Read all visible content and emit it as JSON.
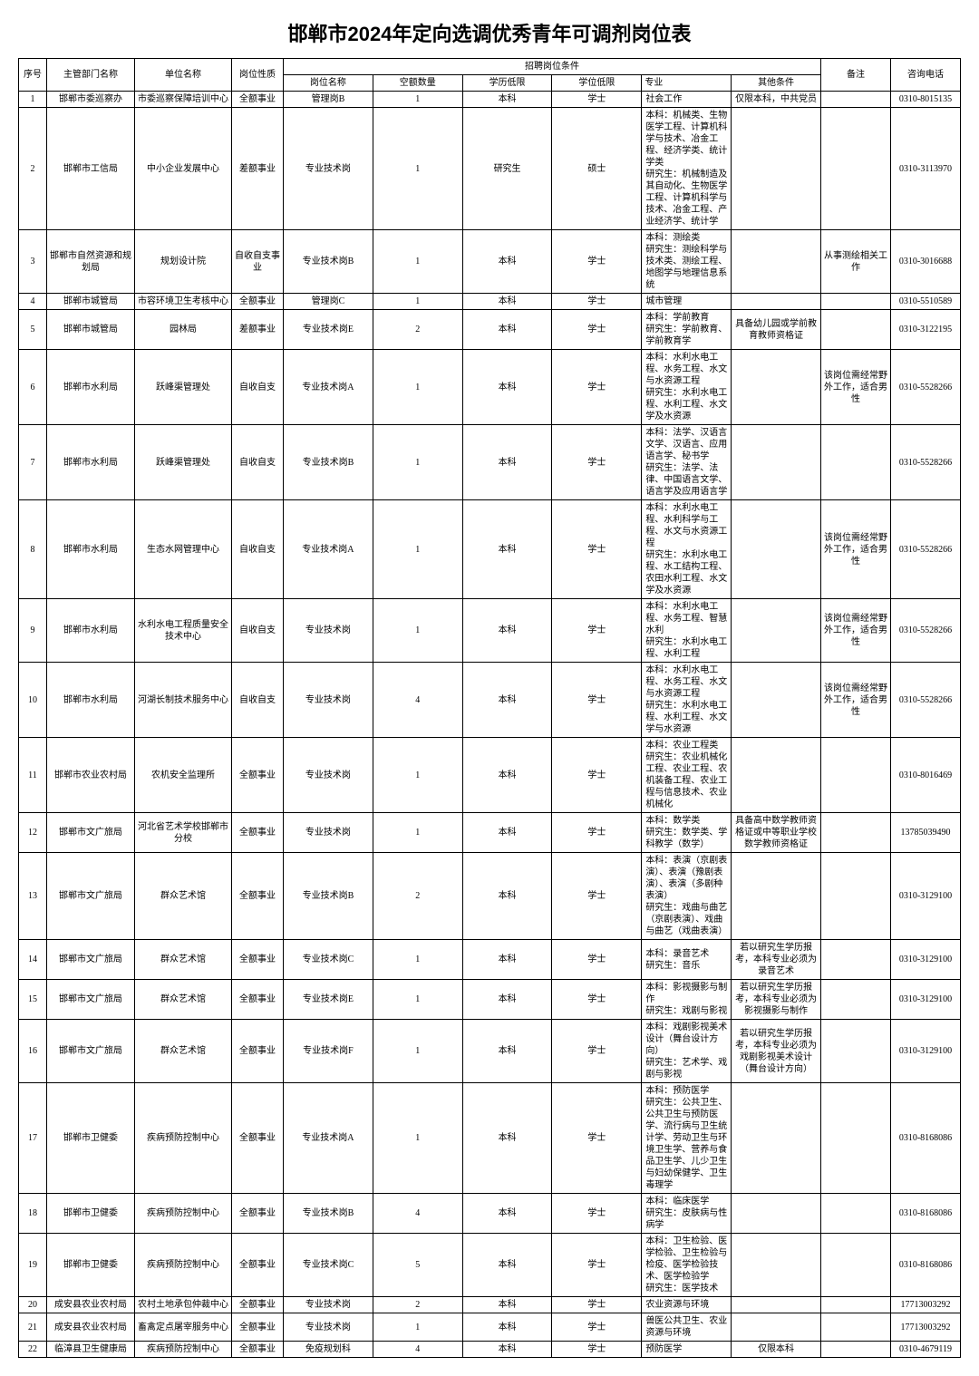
{
  "title": "邯郸市2024年定向选调优秀青年可调剂岗位表",
  "headers": {
    "seq": "序号",
    "dept": "主管部门名称",
    "unit": "单位名称",
    "nature": "岗位性质",
    "group": "招聘岗位条件",
    "post": "岗位名称",
    "qty": "空额数量",
    "edu": "学历低限",
    "deg": "学位低限",
    "major": "专业",
    "other": "其他条件",
    "remark": "备注",
    "phone": "咨询电话"
  },
  "rows": [
    {
      "seq": "1",
      "dept": "邯郸市委巡察办",
      "unit": "市委巡察保障培训中心",
      "nature": "全额事业",
      "post": "管理岗B",
      "qty": "1",
      "edu": "本科",
      "deg": "学士",
      "major": "社会工作",
      "other": "仅限本科，中共党员",
      "remark": "",
      "phone": "0310-8015135"
    },
    {
      "seq": "2",
      "dept": "邯郸市工信局",
      "unit": "中小企业发展中心",
      "nature": "差额事业",
      "post": "专业技术岗",
      "qty": "1",
      "edu": "研究生",
      "deg": "硕士",
      "major": "本科：机械类、生物医学工程、计算机科学与技术、冶金工程、经济学类、统计学类\n研究生：机械制造及其自动化、生物医学工程、计算机科学与技术、冶金工程、产业经济学、统计学",
      "other": "",
      "remark": "",
      "phone": "0310-3113970"
    },
    {
      "seq": "3",
      "dept": "邯郸市自然资源和规划局",
      "unit": "规划设计院",
      "nature": "自收自支事业",
      "post": "专业技术岗B",
      "qty": "1",
      "edu": "本科",
      "deg": "学士",
      "major": "本科：测绘类\n研究生：测绘科学与技术类、测绘工程、地图学与地理信息系统",
      "other": "",
      "remark": "从事测绘相关工作",
      "phone": "0310-3016688"
    },
    {
      "seq": "4",
      "dept": "邯郸市城管局",
      "unit": "市容环境卫生考核中心",
      "nature": "全额事业",
      "post": "管理岗C",
      "qty": "1",
      "edu": "本科",
      "deg": "学士",
      "major": "城市管理",
      "other": "",
      "remark": "",
      "phone": "0310-5510589"
    },
    {
      "seq": "5",
      "dept": "邯郸市城管局",
      "unit": "园林局",
      "nature": "差额事业",
      "post": "专业技术岗E",
      "qty": "2",
      "edu": "本科",
      "deg": "学士",
      "major": "本科：学前教育\n研究生：学前教育、学前教育学",
      "other": "具备幼儿园或学前教育教师资格证",
      "remark": "",
      "phone": "0310-3122195"
    },
    {
      "seq": "6",
      "dept": "邯郸市水利局",
      "unit": "跃峰渠管理处",
      "nature": "自收自支",
      "post": "专业技术岗A",
      "qty": "1",
      "edu": "本科",
      "deg": "学士",
      "major": "本科：水利水电工程、水务工程、水文与水资源工程\n研究生：水利水电工程、水利工程、水文学及水资源",
      "other": "",
      "remark": "该岗位需经常野外工作，适合男性",
      "phone": "0310-5528266"
    },
    {
      "seq": "7",
      "dept": "邯郸市水利局",
      "unit": "跃峰渠管理处",
      "nature": "自收自支",
      "post": "专业技术岗B",
      "qty": "1",
      "edu": "本科",
      "deg": "学士",
      "major": "本科：法学、汉语言文学、汉语言、应用语言学、秘书学\n研究生：法学、法律、中国语言文学、语言学及应用语言学",
      "other": "",
      "remark": "",
      "phone": "0310-5528266"
    },
    {
      "seq": "8",
      "dept": "邯郸市水利局",
      "unit": "生态水网管理中心",
      "nature": "自收自支",
      "post": "专业技术岗A",
      "qty": "1",
      "edu": "本科",
      "deg": "学士",
      "major": "本科：水利水电工程、水利科学与工程、水文与水资源工程\n研究生：水利水电工程、水工结构工程、农田水利工程、水文学及水资源",
      "other": "",
      "remark": "该岗位需经常野外工作，适合男性",
      "phone": "0310-5528266"
    },
    {
      "seq": "9",
      "dept": "邯郸市水利局",
      "unit": "水利水电工程质量安全技术中心",
      "nature": "自收自支",
      "post": "专业技术岗",
      "qty": "1",
      "edu": "本科",
      "deg": "学士",
      "major": "本科：水利水电工程、水务工程、智慧水利\n研究生：水利水电工程、水利工程",
      "other": "",
      "remark": "该岗位需经常野外工作，适合男性",
      "phone": "0310-5528266"
    },
    {
      "seq": "10",
      "dept": "邯郸市水利局",
      "unit": "河湖长制技术服务中心",
      "nature": "自收自支",
      "post": "专业技术岗",
      "qty": "4",
      "edu": "本科",
      "deg": "学士",
      "major": "本科：水利水电工程、水务工程、水文与水资源工程\n研究生：水利水电工程、水利工程、水文学与水资源",
      "other": "",
      "remark": "该岗位需经常野外工作，适合男性",
      "phone": "0310-5528266"
    },
    {
      "seq": "11",
      "dept": "邯郸市农业农村局",
      "unit": "农机安全监理所",
      "nature": "全额事业",
      "post": "专业技术岗",
      "qty": "1",
      "edu": "本科",
      "deg": "学士",
      "major": "本科：农业工程类\n研究生：农业机械化工程、农业工程、农机装备工程、农业工程与信息技术、农业机械化",
      "other": "",
      "remark": "",
      "phone": "0310-8016469"
    },
    {
      "seq": "12",
      "dept": "邯郸市文广旅局",
      "unit": "河北省艺术学校邯郸市分校",
      "nature": "全额事业",
      "post": "专业技术岗",
      "qty": "1",
      "edu": "本科",
      "deg": "学士",
      "major": "本科：数学类\n研究生：数学类、学科教学（数学）",
      "other": "具备高中数学教师资格证或中等职业学校数学教师资格证",
      "remark": "",
      "phone": "13785039490"
    },
    {
      "seq": "13",
      "dept": "邯郸市文广旅局",
      "unit": "群众艺术馆",
      "nature": "全额事业",
      "post": "专业技术岗B",
      "qty": "2",
      "edu": "本科",
      "deg": "学士",
      "major": "本科：表演（京剧表演）、表演（豫剧表演）、表演（多剧种表演）\n研究生：戏曲与曲艺（京剧表演）、戏曲与曲艺（戏曲表演）",
      "other": "",
      "remark": "",
      "phone": "0310-3129100"
    },
    {
      "seq": "14",
      "dept": "邯郸市文广旅局",
      "unit": "群众艺术馆",
      "nature": "全额事业",
      "post": "专业技术岗C",
      "qty": "1",
      "edu": "本科",
      "deg": "学士",
      "major": "本科：录音艺术\n研究生：音乐",
      "other": "若以研究生学历报考，本科专业必须为录音艺术",
      "remark": "",
      "phone": "0310-3129100"
    },
    {
      "seq": "15",
      "dept": "邯郸市文广旅局",
      "unit": "群众艺术馆",
      "nature": "全额事业",
      "post": "专业技术岗E",
      "qty": "1",
      "edu": "本科",
      "deg": "学士",
      "major": "本科：影视摄影与制作\n研究生：戏剧与影视",
      "other": "若以研究生学历报考，本科专业必须为影视摄影与制作",
      "remark": "",
      "phone": "0310-3129100"
    },
    {
      "seq": "16",
      "dept": "邯郸市文广旅局",
      "unit": "群众艺术馆",
      "nature": "全额事业",
      "post": "专业技术岗F",
      "qty": "1",
      "edu": "本科",
      "deg": "学士",
      "major": "本科：戏剧影视美术设计（舞台设计方向）\n研究生：艺术学、戏剧与影视",
      "other": "若以研究生学历报考，本科专业必须为戏剧影视美术设计（舞台设计方向）",
      "remark": "",
      "phone": "0310-3129100"
    },
    {
      "seq": "17",
      "dept": "邯郸市卫健委",
      "unit": "疾病预防控制中心",
      "nature": "全额事业",
      "post": "专业技术岗A",
      "qty": "1",
      "edu": "本科",
      "deg": "学士",
      "major": "本科：预防医学\n研究生：公共卫生、公共卫生与预防医学、流行病与卫生统计学、劳动卫生与环境卫生学、营养与食品卫生学、儿少卫生与妇幼保健学、卫生毒理学",
      "other": "",
      "remark": "",
      "phone": "0310-8168086"
    },
    {
      "seq": "18",
      "dept": "邯郸市卫健委",
      "unit": "疾病预防控制中心",
      "nature": "全额事业",
      "post": "专业技术岗B",
      "qty": "4",
      "edu": "本科",
      "deg": "学士",
      "major": "本科：临床医学\n研究生：皮肤病与性病学",
      "other": "",
      "remark": "",
      "phone": "0310-8168086"
    },
    {
      "seq": "19",
      "dept": "邯郸市卫健委",
      "unit": "疾病预防控制中心",
      "nature": "全额事业",
      "post": "专业技术岗C",
      "qty": "5",
      "edu": "本科",
      "deg": "学士",
      "major": "本科：卫生检验、医学检验、卫生检验与检疫、医学检验技术、医学检验学\n研究生：医学技术",
      "other": "",
      "remark": "",
      "phone": "0310-8168086"
    },
    {
      "seq": "20",
      "dept": "成安县农业农村局",
      "unit": "农村土地承包仲裁中心",
      "nature": "全额事业",
      "post": "专业技术岗",
      "qty": "2",
      "edu": "本科",
      "deg": "学士",
      "major": "农业资源与环境",
      "other": "",
      "remark": "",
      "phone": "17713003292"
    },
    {
      "seq": "21",
      "dept": "成安县农业农村局",
      "unit": "畜禽定点屠宰服务中心",
      "nature": "全额事业",
      "post": "专业技术岗",
      "qty": "1",
      "edu": "本科",
      "deg": "学士",
      "major": "兽医公共卫生、农业资源与环境",
      "other": "",
      "remark": "",
      "phone": "17713003292"
    },
    {
      "seq": "22",
      "dept": "临漳县卫生健康局",
      "unit": "疾病预防控制中心",
      "nature": "全额事业",
      "post": "免疫规划科",
      "qty": "4",
      "edu": "本科",
      "deg": "学士",
      "major": "预防医学",
      "other": "仅限本科",
      "remark": "",
      "phone": "0310-4679119"
    }
  ]
}
